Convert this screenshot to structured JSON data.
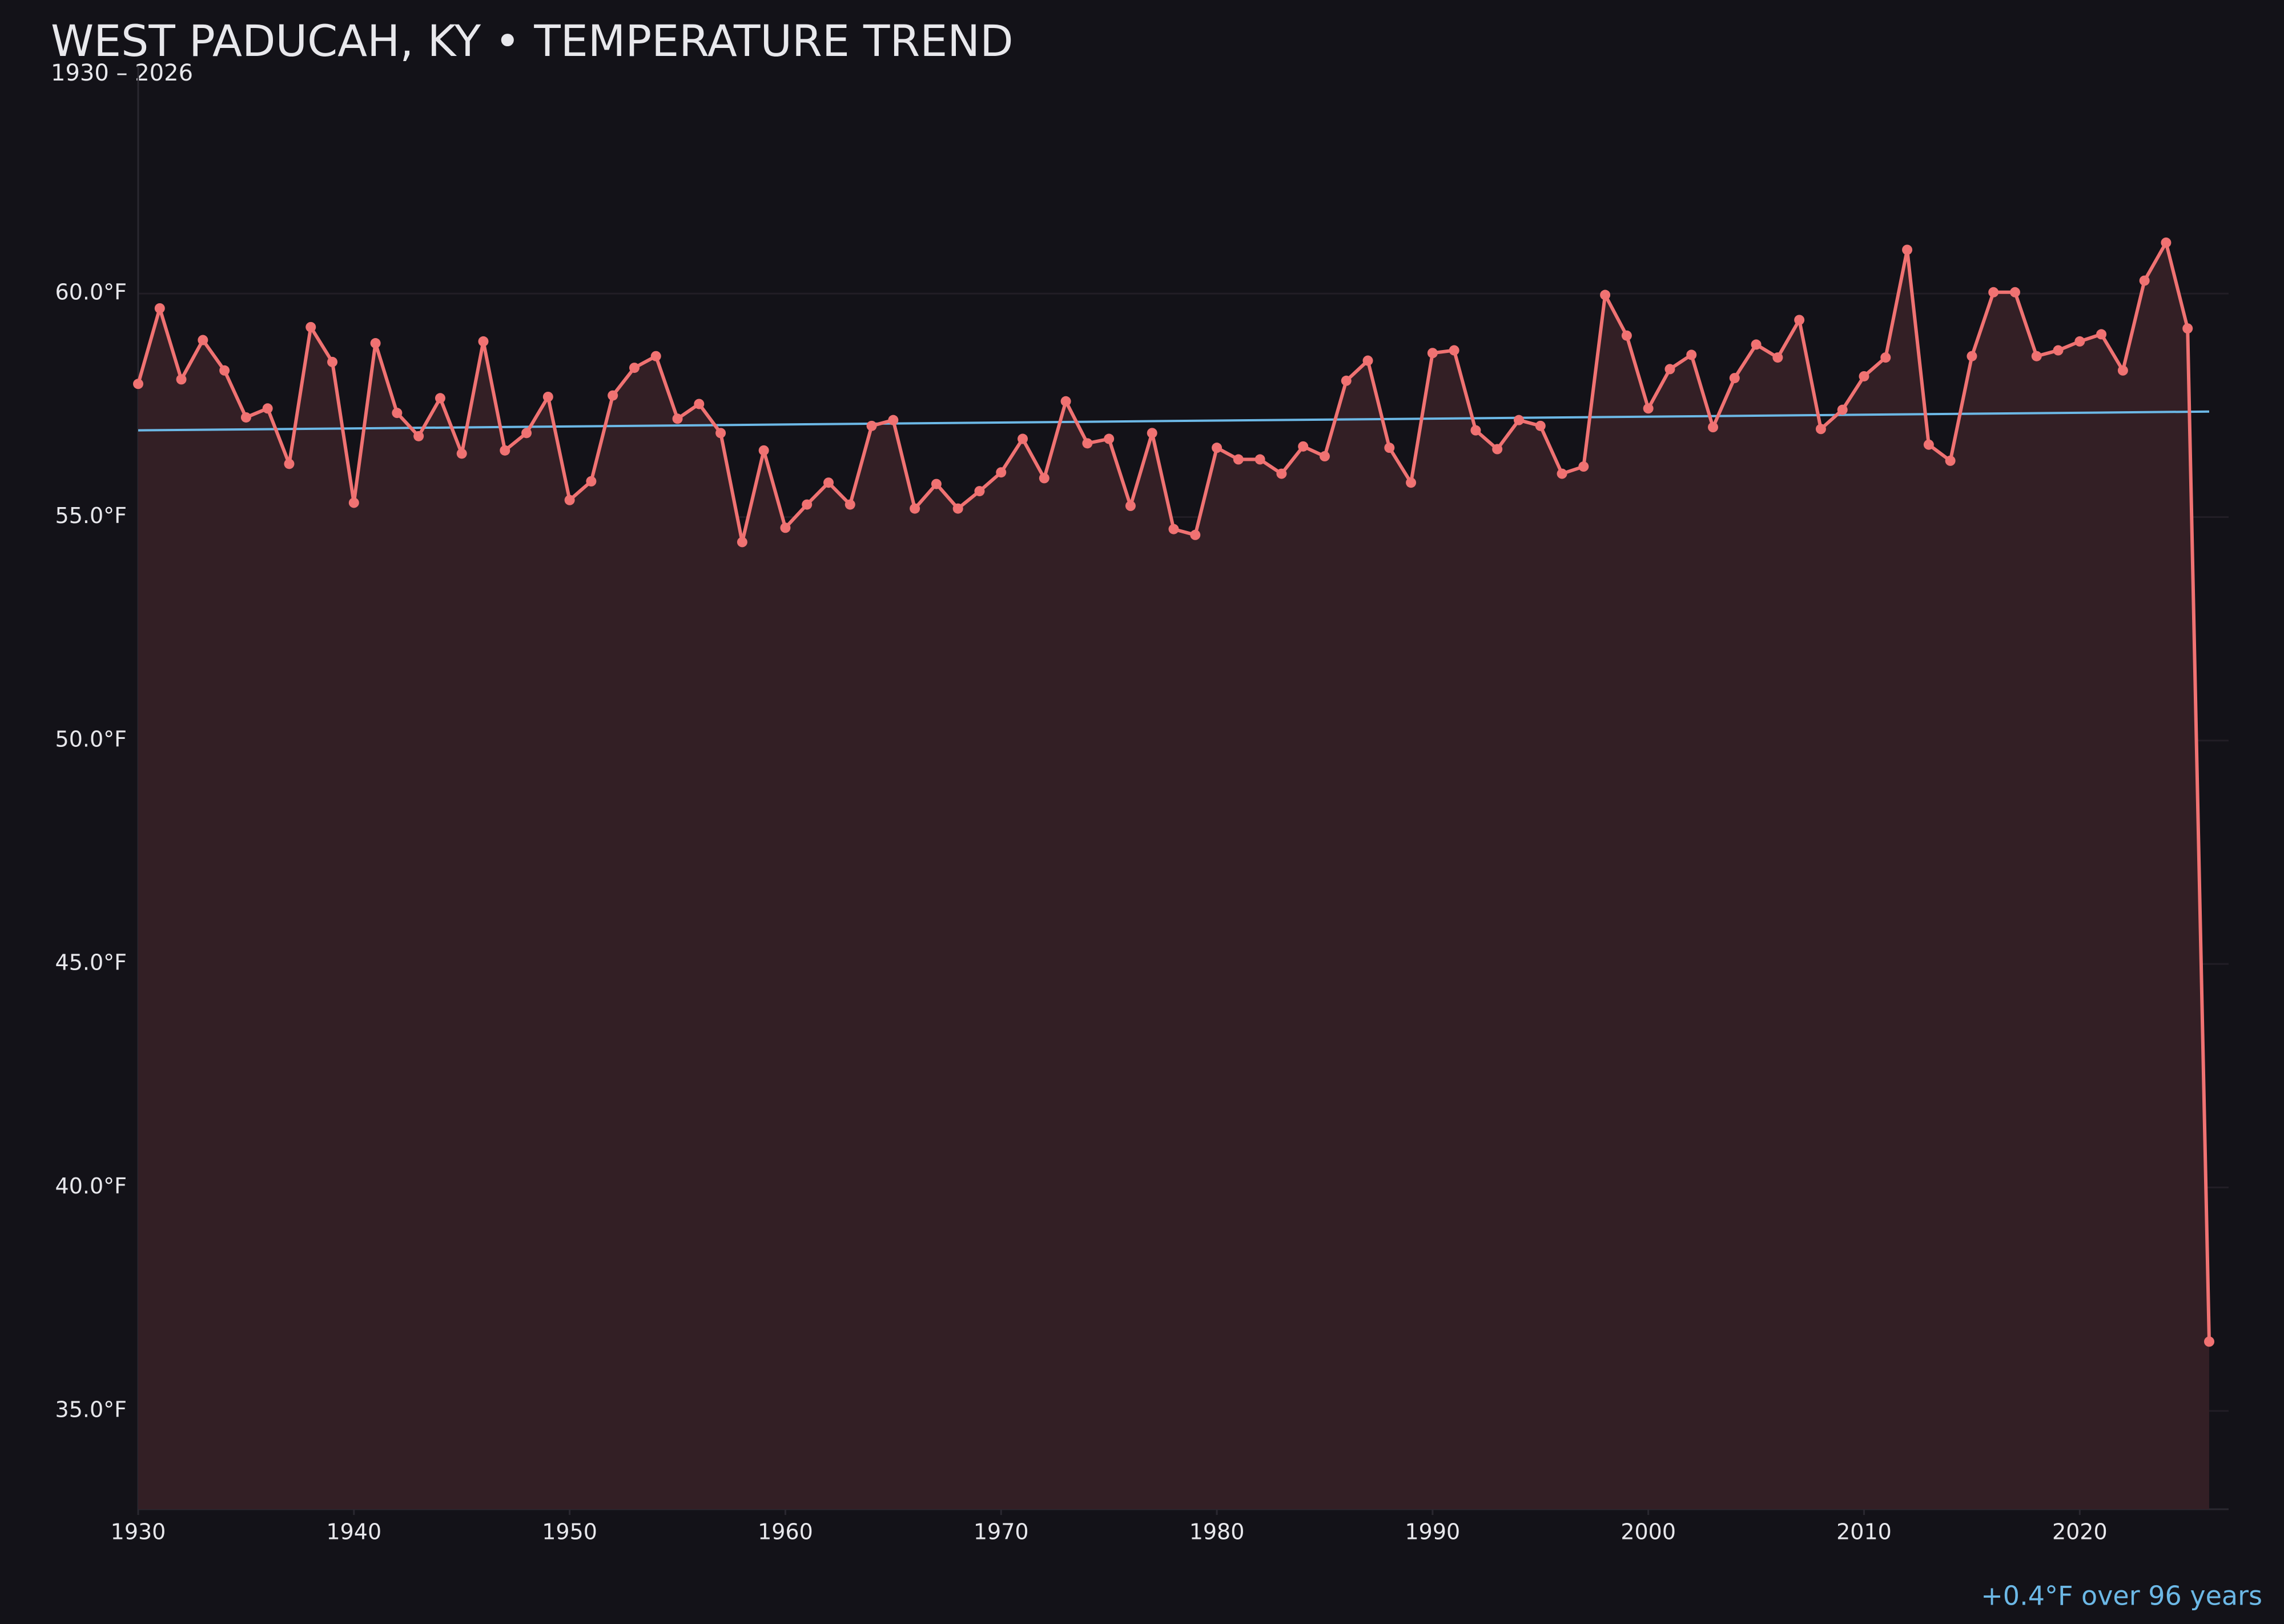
{
  "chart_data": {
    "type": "line",
    "title": "WEST PADUCAH, KY • TEMPERATURE TREND",
    "subtitle": "1930 – 2026",
    "annotation": "+0.4°F over 96 years",
    "color": "#f07272",
    "fill_color": "#331f25",
    "x": [
      1930,
      1931,
      1932,
      1933,
      1934,
      1935,
      1936,
      1937,
      1938,
      1939,
      1940,
      1941,
      1942,
      1943,
      1944,
      1945,
      1946,
      1947,
      1948,
      1949,
      1950,
      1951,
      1952,
      1953,
      1954,
      1955,
      1956,
      1957,
      1958,
      1959,
      1960,
      1961,
      1962,
      1963,
      1964,
      1965,
      1966,
      1967,
      1968,
      1969,
      1970,
      1971,
      1972,
      1973,
      1974,
      1975,
      1976,
      1977,
      1978,
      1979,
      1980,
      1981,
      1982,
      1983,
      1984,
      1985,
      1986,
      1987,
      1988,
      1989,
      1990,
      1991,
      1992,
      1993,
      1994,
      1995,
      1996,
      1997,
      1998,
      1999,
      2000,
      2001,
      2002,
      2003,
      2004,
      2005,
      2006,
      2007,
      2008,
      2009,
      2010,
      2011,
      2012,
      2013,
      2014,
      2015,
      2016,
      2017,
      2018,
      2019,
      2020,
      2021,
      2022,
      2023,
      2024,
      2025,
      2026
    ],
    "values": [
      57.98,
      59.67,
      58.08,
      58.96,
      58.28,
      57.23,
      57.43,
      56.19,
      59.25,
      58.47,
      55.32,
      58.89,
      57.33,
      56.81,
      57.66,
      56.42,
      58.93,
      56.49,
      56.88,
      57.69,
      55.38,
      55.8,
      57.72,
      58.34,
      58.6,
      57.2,
      57.53,
      56.88,
      54.44,
      56.49,
      54.76,
      55.28,
      55.77,
      55.28,
      57.04,
      57.17,
      55.19,
      55.74,
      55.19,
      55.58,
      56.0,
      56.75,
      55.87,
      57.59,
      56.65,
      56.75,
      55.25,
      56.88,
      54.73,
      54.6,
      56.55,
      56.29,
      56.29,
      55.97,
      56.58,
      56.36,
      58.05,
      58.5,
      56.55,
      55.77,
      58.67,
      58.73,
      56.94,
      56.52,
      57.17,
      57.04,
      55.97,
      56.13,
      59.97,
      59.06,
      57.43,
      58.31,
      58.63,
      57.01,
      58.11,
      58.86,
      58.57,
      59.41,
      56.97,
      57.4,
      58.15,
      58.57,
      60.98,
      56.62,
      56.26,
      58.6,
      60.03,
      60.03,
      58.6,
      58.73,
      58.93,
      59.09,
      58.28,
      60.29,
      61.14,
      59.22,
      36.55
    ],
    "trend": {
      "color": "#6cb8e6",
      "x": [
        1930,
        2026
      ],
      "values": [
        56.94,
        57.36
      ]
    },
    "xlim": [
      1930,
      2026.9
    ],
    "ylim": [
      32.8,
      65.1
    ],
    "xticks": [
      1930,
      1940,
      1950,
      1960,
      1970,
      1980,
      1990,
      2000,
      2010,
      2020
    ],
    "yticks": [
      {
        "value": 35,
        "label": "35.0°F"
      },
      {
        "value": 40,
        "label": "40.0°F"
      },
      {
        "value": 45,
        "label": "45.0°F"
      },
      {
        "value": 50,
        "label": "50.0°F"
      },
      {
        "value": 55,
        "label": "55.0°F"
      },
      {
        "value": 60,
        "label": "60.0°F"
      }
    ],
    "grid": true
  }
}
